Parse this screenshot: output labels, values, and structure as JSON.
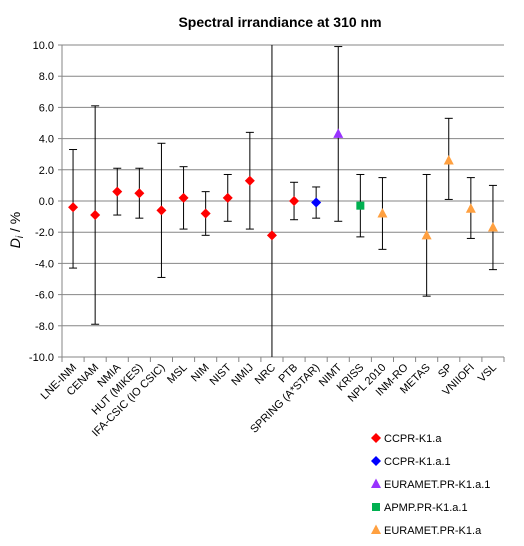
{
  "chart_data": {
    "type": "scatter",
    "title": "Spectral irrandiance at 310 nm",
    "ylabel_main": "D",
    "ylabel_sub": "i",
    "ylabel_rest": " / %",
    "ylim": [
      -10,
      10
    ],
    "yticks": [
      10,
      8,
      6,
      4,
      2,
      0,
      -2,
      -4,
      -6,
      -8,
      -10
    ],
    "ytick_labels": [
      "10.0",
      "8.0",
      "6.0",
      "4.0",
      "2.0",
      "0.0",
      "-2.0",
      "-4.0",
      "-6.0",
      "-8.0",
      "-10.0"
    ],
    "grid": true,
    "legend_position": "bottom-right",
    "categories": [
      "LNE-INM",
      "CENAM",
      "NMIA",
      "HUT (MIKES)",
      "IFA-CSIC (IO CSIC)",
      "MSL",
      "NIM",
      "NIST",
      "NMIJ",
      "NRC",
      "PTB",
      "SPRING (A*STAR)",
      "NIMT",
      "KRISS",
      "NPL 2010",
      "INM-RO",
      "METAS",
      "SP",
      "VNIIOFI",
      "VSL"
    ],
    "series": [
      {
        "name": "CCPR-K1.a",
        "color": "#ff0000",
        "marker": "diamond",
        "points": [
          {
            "category": "LNE-INM",
            "y": -0.4,
            "upper": 3.3,
            "lower": -4.3
          },
          {
            "category": "CENAM",
            "y": -0.9,
            "upper": 6.1,
            "lower": -7.9
          },
          {
            "category": "NMIA",
            "y": 0.6,
            "upper": 2.1,
            "lower": -0.9
          },
          {
            "category": "HUT (MIKES)",
            "y": 0.5,
            "upper": 2.1,
            "lower": -1.1
          },
          {
            "category": "IFA-CSIC (IO CSIC)",
            "y": -0.6,
            "upper": 3.7,
            "lower": -4.9
          },
          {
            "category": "MSL",
            "y": 0.2,
            "upper": 2.2,
            "lower": -1.8
          },
          {
            "category": "NIM",
            "y": -0.8,
            "upper": 0.6,
            "lower": -2.2
          },
          {
            "category": "NIST",
            "y": 0.2,
            "upper": 1.7,
            "lower": -1.3
          },
          {
            "category": "NMIJ",
            "y": 1.3,
            "upper": 4.4,
            "lower": -1.8
          },
          {
            "category": "NRC",
            "y": -2.2,
            "upper": 10.0,
            "lower": -10.0
          },
          {
            "category": "PTB",
            "y": 0.0,
            "upper": 1.2,
            "lower": -1.2
          }
        ]
      },
      {
        "name": "CCPR-K1.a.1",
        "color": "#0000ff",
        "marker": "diamond",
        "points": [
          {
            "category": "SPRING (A*STAR)",
            "y": -0.1,
            "upper": 0.9,
            "lower": -1.1
          }
        ]
      },
      {
        "name": "EURAMET.PR-K1.a.1",
        "color": "#9933ff",
        "marker": "triangle",
        "points": [
          {
            "category": "NIMT",
            "y": 4.3,
            "upper": 9.9,
            "lower": -1.3
          }
        ]
      },
      {
        "name": "APMP.PR-K1.a.1",
        "color": "#00b050",
        "marker": "square",
        "points": [
          {
            "category": "KRISS",
            "y": -0.3,
            "upper": 1.7,
            "lower": -2.3
          }
        ]
      },
      {
        "name": "EURAMET.PR-K1.a",
        "color": "#ffa040",
        "marker": "triangle",
        "points": [
          {
            "category": "NPL 2010",
            "y": -0.8,
            "upper": 1.5,
            "lower": -3.1
          },
          {
            "category": "METAS",
            "y": -2.2,
            "upper": 1.7,
            "lower": -6.1
          },
          {
            "category": "SP",
            "y": 2.6,
            "upper": 5.3,
            "lower": 0.1
          },
          {
            "category": "VNIIOFI",
            "y": -0.5,
            "upper": 1.5,
            "lower": -2.4
          },
          {
            "category": "VSL",
            "y": -1.7,
            "upper": 1.0,
            "lower": -4.4
          }
        ]
      }
    ]
  }
}
